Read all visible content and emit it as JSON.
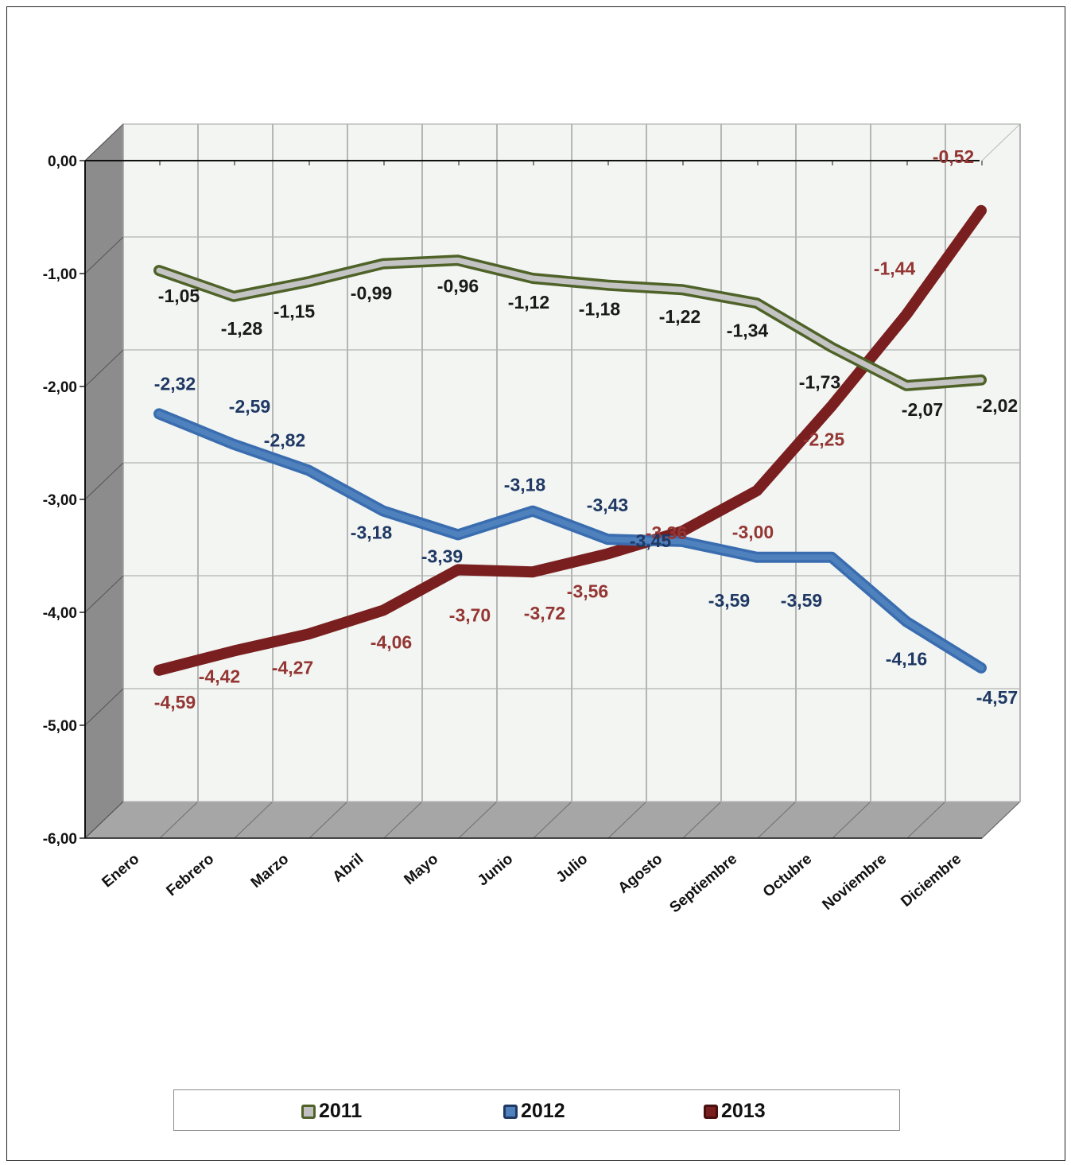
{
  "chart_data": {
    "type": "line",
    "title": "",
    "xlabel": "",
    "ylabel": "",
    "categories": [
      "Enero",
      "Febrero",
      "Marzo",
      "Abril",
      "Mayo",
      "Junio",
      "Julio",
      "Agosto",
      "Septiembre",
      "Octubre",
      "Noviembre",
      "Diciembre"
    ],
    "ylim": [
      -6,
      0
    ],
    "yticks": [
      "0,00",
      "-1,00",
      "-2,00",
      "-3,00",
      "-4,00",
      "-5,00",
      "-6,00"
    ],
    "grid": true,
    "legend_position": "bottom",
    "series": [
      {
        "name": "2011",
        "color": "#4f6228",
        "values": [
          -1.05,
          -1.28,
          -1.15,
          -0.99,
          -0.96,
          -1.12,
          -1.18,
          -1.22,
          -1.34,
          -1.73,
          -2.07,
          -2.02
        ],
        "labels": [
          "-1,05",
          "-1,28",
          "-1,15",
          "-0,99",
          "-0,96",
          "-1,12",
          "-1,18",
          "-1,22",
          "-1,34",
          "-1,73",
          "-2,07",
          "-2,02"
        ]
      },
      {
        "name": "2012",
        "color": "#3a6db0",
        "values": [
          -2.32,
          -2.59,
          -2.82,
          -3.18,
          -3.39,
          -3.18,
          -3.43,
          -3.45,
          -3.59,
          -3.59,
          -4.16,
          -4.57
        ],
        "labels": [
          "-2,32",
          "-2,59",
          "-2,82",
          "-3,18",
          "-3,39",
          "-3,18",
          "-3,43",
          "-3,45",
          "-3,59",
          "-3,59",
          "-4,16",
          "-4,57"
        ]
      },
      {
        "name": "2013",
        "color": "#7a1f1f",
        "values": [
          -4.59,
          -4.42,
          -4.27,
          -4.06,
          -3.7,
          -3.72,
          -3.56,
          -3.36,
          -3.0,
          -2.25,
          -1.44,
          -0.52
        ],
        "labels": [
          "-4,59",
          "-4,42",
          "-4,27",
          "-4,06",
          "-3,70",
          "-3,72",
          "-3,56",
          "-3,36",
          "-3,00",
          "-2,25",
          "-1,44",
          "-0,52"
        ]
      }
    ]
  },
  "label_colors": {
    "2011": "#1a1a1a",
    "2012": "#1f3864",
    "2013": "#943634"
  }
}
